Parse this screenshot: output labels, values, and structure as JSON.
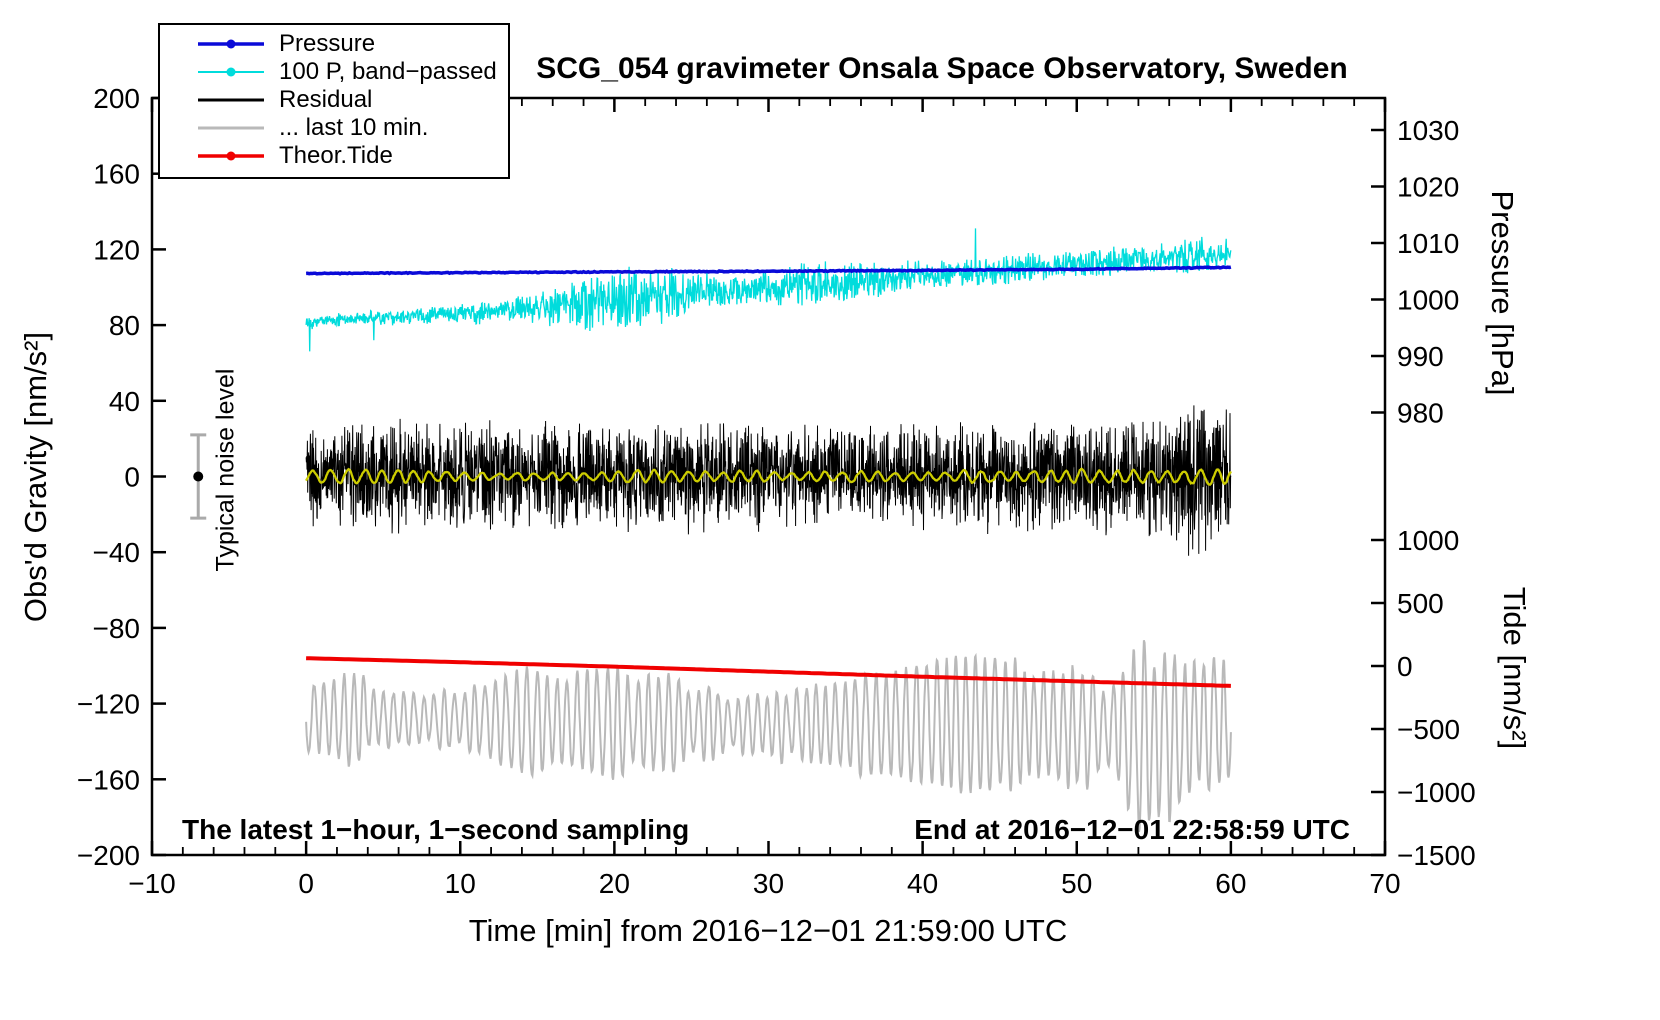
{
  "title": "SCG_054 gravimeter Onsala Space Observatory, Sweden",
  "annotations": {
    "sampling": "The latest 1−hour, 1−second sampling",
    "end_time": "End at 2016−12−01 22:58:59 UTC",
    "noise_label": "Typical noise level"
  },
  "x_axis": {
    "label": "Time [min] from 2016−12−01 21:59:00 UTC",
    "ticks": [
      -10,
      0,
      10,
      20,
      30,
      40,
      50,
      60,
      70
    ],
    "minor_step": 2,
    "range": [
      -10,
      70
    ]
  },
  "gravity_axis": {
    "label": "Obs'd Gravity [nm/s²]",
    "ticks": [
      200,
      160,
      120,
      80,
      40,
      0,
      -40,
      -80,
      -120,
      -160,
      -200
    ],
    "range": [
      -200,
      200
    ]
  },
  "pressure_axis": {
    "label": "Pressure [hPa]",
    "ticks": [
      1030,
      1020,
      1010,
      1000,
      990,
      980
    ]
  },
  "tide_axis": {
    "label": "Tide [nm/s²]",
    "ticks": [
      1000,
      500,
      0,
      -500,
      -1000,
      -1500
    ]
  },
  "legend": {
    "items": [
      {
        "label": "Pressure",
        "color": "#0a0ad8",
        "marker": true,
        "width": 3.5
      },
      {
        "label": "100 P, band−passed",
        "color": "#00dcdc",
        "marker": true,
        "width": 2
      },
      {
        "label": "Residual",
        "color": "#000000",
        "marker": false,
        "width": 3
      },
      {
        "label": "... last 10 min.",
        "color": "#b9b9b9",
        "marker": false,
        "width": 3
      },
      {
        "label": "Theor.Tide",
        "color": "#f00000",
        "marker": true,
        "width": 3.5
      }
    ]
  },
  "chart_data": {
    "type": "line",
    "title": "SCG_054 gravimeter Onsala Space Observatory, Sweden",
    "xlabel": "Time [min] from 2016−12−01 21:59:00 UTC",
    "x_range_min": [
      -10,
      70
    ],
    "data_span_min": [
      0,
      60
    ],
    "sampling": "1-second samples over the latest 1 hour",
    "start_utc": "2016-12-01 21:59:00",
    "end_utc": "2016-12-01 22:58:59",
    "axes": {
      "gravity": {
        "label": "Obs'd Gravity [nm/s²]",
        "tick_range": [
          -200,
          200
        ]
      },
      "pressure": {
        "label": "Pressure [hPa]",
        "tick_range": [
          980,
          1030
        ]
      },
      "tide": {
        "label": "Tide [nm/s²]",
        "tick_range": [
          -1500,
          1000
        ]
      }
    },
    "noise_marker": {
      "x": -7,
      "value": 0,
      "half_range": 22,
      "units": "nm/s²",
      "label": "Typical noise level"
    },
    "series": [
      {
        "id": "band_passed_pressure",
        "name": "100 P, band−passed",
        "axis": "gravity",
        "units": "nm/s²",
        "color": "#00dcdc",
        "width": 1.3,
        "seed": 22,
        "step": 0.033,
        "x_start": 0,
        "x_end": 60,
        "trend": [
          [
            0,
            82
          ],
          [
            5,
            84
          ],
          [
            10,
            86
          ],
          [
            15,
            89
          ],
          [
            20,
            93
          ],
          [
            25,
            97
          ],
          [
            30,
            100
          ],
          [
            35,
            103
          ],
          [
            40,
            106
          ],
          [
            45,
            109
          ],
          [
            50,
            112
          ],
          [
            55,
            115
          ],
          [
            60,
            118
          ]
        ],
        "noise_amp": [
          [
            0,
            2.5
          ],
          [
            10,
            4
          ],
          [
            15,
            6
          ],
          [
            17,
            10
          ],
          [
            19,
            13
          ],
          [
            21,
            14
          ],
          [
            23,
            12
          ],
          [
            25,
            9
          ],
          [
            27,
            7
          ],
          [
            30,
            8
          ],
          [
            33,
            10
          ],
          [
            36,
            8
          ],
          [
            40,
            6
          ],
          [
            45,
            6
          ],
          [
            50,
            6
          ],
          [
            55,
            7
          ],
          [
            58,
            8
          ],
          [
            60,
            6
          ]
        ],
        "spike": 0.006,
        "spike_amp": 18
      },
      {
        "id": "pressure",
        "name": "Pressure",
        "axis": "pressure",
        "units": "hPa",
        "color": "#0a0ad8",
        "width": 3.5,
        "seed": 11,
        "step": 0.1,
        "x_start": 0,
        "x_end": 60,
        "trend": [
          [
            0,
            1004.6
          ],
          [
            10,
            1004.75
          ],
          [
            20,
            1004.9
          ],
          [
            30,
            1005.0
          ],
          [
            40,
            1005.15
          ],
          [
            50,
            1005.35
          ],
          [
            60,
            1005.7
          ]
        ],
        "noise_amp": [
          [
            0,
            0.07
          ],
          [
            60,
            0.07
          ]
        ]
      },
      {
        "id": "residual",
        "name": "Residual",
        "axis": "gravity",
        "units": "nm/s²",
        "color": "#000000",
        "width": 1,
        "seed": 33,
        "step": 0.02,
        "x_start": 0,
        "x_end": 60,
        "trend": [
          [
            0,
            0
          ],
          [
            60,
            0
          ]
        ],
        "noise_amp": [
          [
            0,
            20
          ],
          [
            5,
            22
          ],
          [
            10,
            22
          ],
          [
            20,
            22
          ],
          [
            30,
            22
          ],
          [
            40,
            22
          ],
          [
            50,
            22
          ],
          [
            55,
            24
          ],
          [
            57,
            30
          ],
          [
            58,
            38
          ],
          [
            59,
            30
          ],
          [
            60,
            24
          ]
        ],
        "spike": 0.003,
        "spike_amp": 25
      },
      {
        "id": "residual_band_passed_overlay",
        "name": "Residual, band-passed (yellow overlay)",
        "axis": "gravity",
        "units": "nm/s²",
        "color": "#cdcd00",
        "width": 2.3,
        "seed": 44,
        "step": 0.04,
        "x_start": 0,
        "x_end": 60,
        "mode": "osc",
        "period": 1.1,
        "trend": [
          [
            0,
            0
          ],
          [
            60,
            0
          ]
        ],
        "noise_amp": [
          [
            0,
            3
          ],
          [
            10,
            2.5
          ],
          [
            20,
            2.5
          ],
          [
            30,
            3
          ],
          [
            40,
            3
          ],
          [
            46,
            4.5
          ],
          [
            50,
            5
          ],
          [
            54,
            5.5
          ],
          [
            57,
            5
          ],
          [
            60,
            3.5
          ]
        ]
      },
      {
        "id": "residual_last_10_min",
        "name": "... last 10 min.",
        "axis": "gravity",
        "units": "nm/s²",
        "color": "#b9b9b9",
        "width": 2,
        "seed": 55,
        "step": 0.04,
        "x_start": 0,
        "x_end": 60,
        "mode": "osc",
        "period": 0.65,
        "trend": [
          [
            0,
            -127
          ],
          [
            5,
            -128
          ],
          [
            15,
            -129
          ],
          [
            30,
            -131
          ],
          [
            45,
            -131
          ],
          [
            52,
            -133
          ],
          [
            55,
            -140
          ],
          [
            57,
            -133
          ],
          [
            60,
            -128
          ]
        ],
        "noise_amp": [
          [
            0,
            18
          ],
          [
            2,
            30
          ],
          [
            3,
            34
          ],
          [
            4,
            28
          ],
          [
            6,
            22
          ],
          [
            10,
            20
          ],
          [
            15,
            22
          ],
          [
            20,
            23
          ],
          [
            25,
            22
          ],
          [
            30,
            23
          ],
          [
            35,
            22
          ],
          [
            40,
            24
          ],
          [
            43,
            28
          ],
          [
            45,
            26
          ],
          [
            48,
            28
          ],
          [
            50,
            30
          ],
          [
            53,
            34
          ],
          [
            54,
            45
          ],
          [
            55,
            50
          ],
          [
            56,
            50
          ],
          [
            57,
            35
          ],
          [
            58,
            28
          ],
          [
            60,
            24
          ]
        ]
      },
      {
        "id": "theor_tide",
        "name": "Theor.Tide",
        "axis": "tide",
        "units": "nm/s²",
        "color": "#f00000",
        "width": 4,
        "seed": 66,
        "step": 0.25,
        "x_start": 0,
        "x_end": 60,
        "trend": [
          [
            0,
            62
          ],
          [
            10,
            30
          ],
          [
            20,
            -5
          ],
          [
            30,
            -45
          ],
          [
            40,
            -85
          ],
          [
            50,
            -122
          ],
          [
            60,
            -158
          ]
        ]
      }
    ]
  }
}
